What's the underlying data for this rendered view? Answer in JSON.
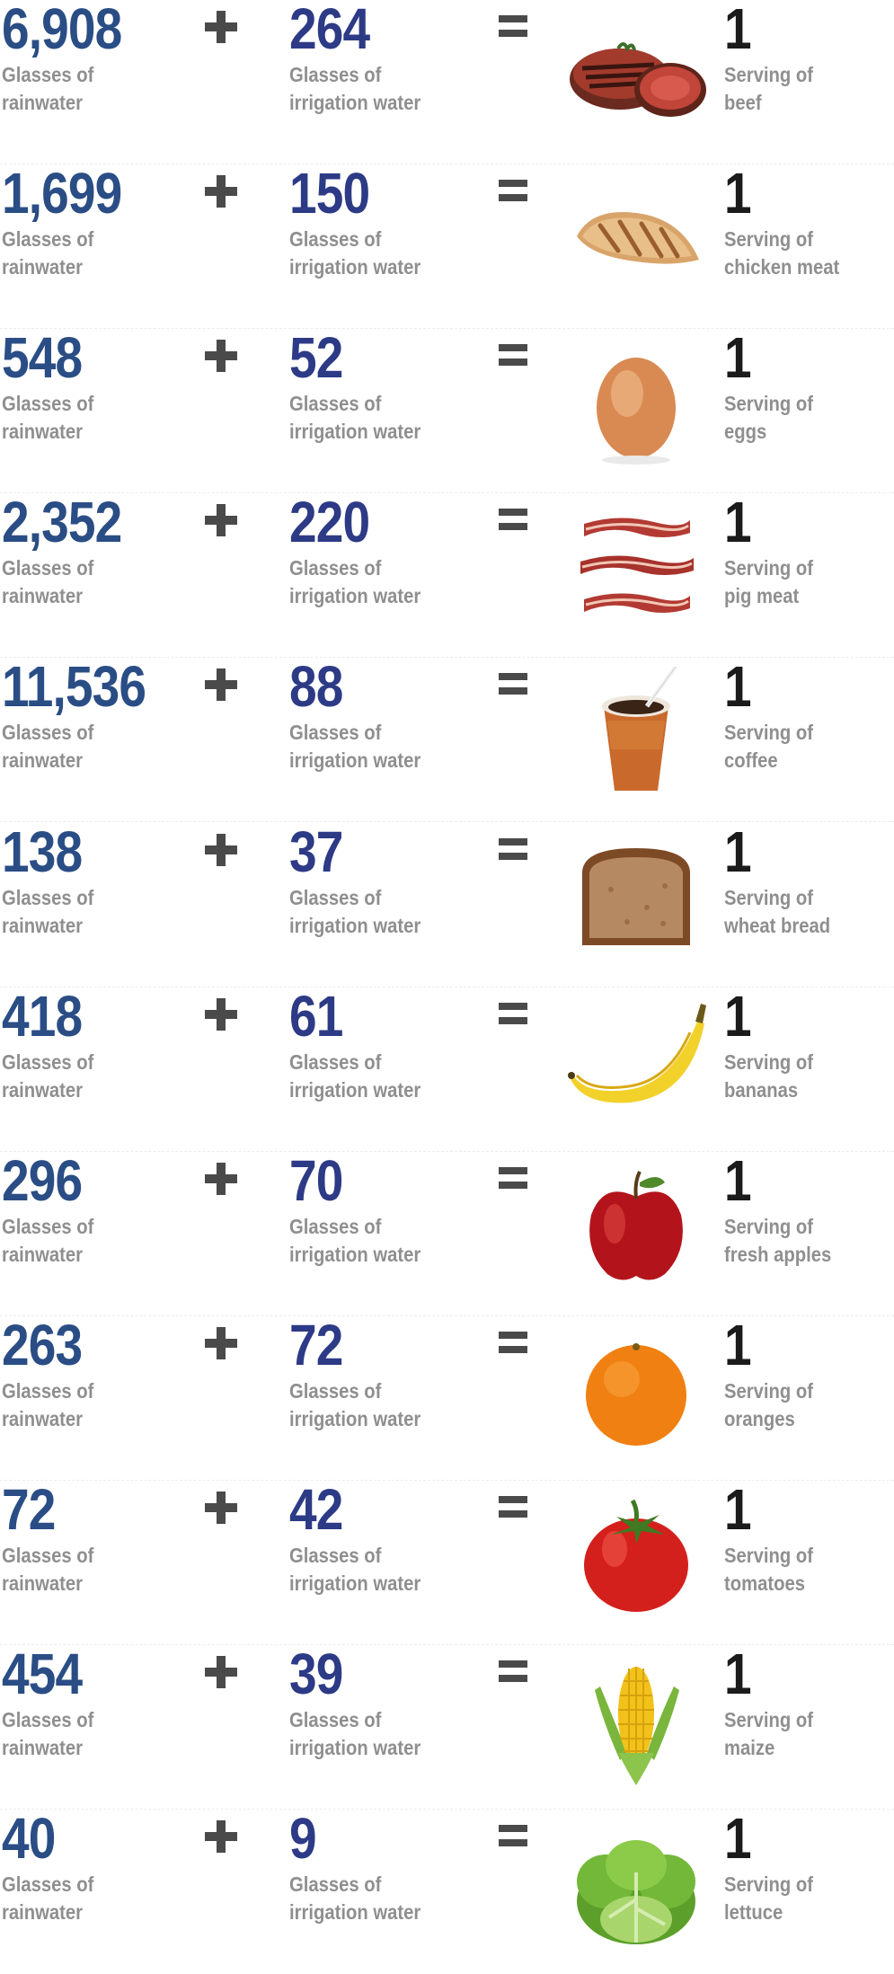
{
  "rows": [
    {
      "rain_value": "6,908",
      "rain_label_1": "Glasses of",
      "rain_label_2": "rainwater",
      "irrigation_value": "264",
      "irrigation_label_1": "Glasses of",
      "irrigation_label_2": "irrigation water",
      "serving_value": "1",
      "serving_label_1": "Serving of",
      "serving_label_2": "beef",
      "icon": "steak-icon"
    },
    {
      "rain_value": "1,699",
      "rain_label_1": "Glasses of",
      "rain_label_2": "rainwater",
      "irrigation_value": "150",
      "irrigation_label_1": "Glasses of",
      "irrigation_label_2": "irrigation water",
      "serving_value": "1",
      "serving_label_1": "Serving of",
      "serving_label_2": "chicken meat",
      "icon": "chicken-icon"
    },
    {
      "rain_value": "548",
      "rain_label_1": "Glasses of",
      "rain_label_2": "rainwater",
      "irrigation_value": "52",
      "irrigation_label_1": "Glasses of",
      "irrigation_label_2": "irrigation water",
      "serving_value": "1",
      "serving_label_1": "Serving of",
      "serving_label_2": "eggs",
      "icon": "egg-icon"
    },
    {
      "rain_value": "2,352",
      "rain_label_1": "Glasses of",
      "rain_label_2": "rainwater",
      "irrigation_value": "220",
      "irrigation_label_1": "Glasses of",
      "irrigation_label_2": "irrigation water",
      "serving_value": "1",
      "serving_label_1": "Serving of",
      "serving_label_2": "pig meat",
      "icon": "bacon-icon"
    },
    {
      "rain_value": "11,536",
      "rain_label_1": "Glasses of",
      "rain_label_2": "rainwater",
      "irrigation_value": "88",
      "irrigation_label_1": "Glasses of",
      "irrigation_label_2": "irrigation water",
      "serving_value": "1",
      "serving_label_1": "Serving of",
      "serving_label_2": "coffee",
      "icon": "coffee-cup-icon"
    },
    {
      "rain_value": "138",
      "rain_label_1": "Glasses of",
      "rain_label_2": "rainwater",
      "irrigation_value": "37",
      "irrigation_label_1": "Glasses of",
      "irrigation_label_2": "irrigation water",
      "serving_value": "1",
      "serving_label_1": "Serving of",
      "serving_label_2": "wheat bread",
      "icon": "bread-icon"
    },
    {
      "rain_value": "418",
      "rain_label_1": "Glasses of",
      "rain_label_2": "rainwater",
      "irrigation_value": "61",
      "irrigation_label_1": "Glasses of",
      "irrigation_label_2": "irrigation water",
      "serving_value": "1",
      "serving_label_1": "Serving of",
      "serving_label_2": "bananas",
      "icon": "banana-icon"
    },
    {
      "rain_value": "296",
      "rain_label_1": "Glasses of",
      "rain_label_2": "rainwater",
      "irrigation_value": "70",
      "irrigation_label_1": "Glasses of",
      "irrigation_label_2": "irrigation water",
      "serving_value": "1",
      "serving_label_1": "Serving of",
      "serving_label_2": "fresh apples",
      "icon": "apple-icon"
    },
    {
      "rain_value": "263",
      "rain_label_1": "Glasses of",
      "rain_label_2": "rainwater",
      "irrigation_value": "72",
      "irrigation_label_1": "Glasses of",
      "irrigation_label_2": "irrigation water",
      "serving_value": "1",
      "serving_label_1": "Serving of",
      "serving_label_2": "oranges",
      "icon": "orange-icon"
    },
    {
      "rain_value": "72",
      "rain_label_1": "Glasses of",
      "rain_label_2": "rainwater",
      "irrigation_value": "42",
      "irrigation_label_1": "Glasses of",
      "irrigation_label_2": "irrigation water",
      "serving_value": "1",
      "serving_label_1": "Serving of",
      "serving_label_2": "tomatoes",
      "icon": "tomato-icon"
    },
    {
      "rain_value": "454",
      "rain_label_1": "Glasses of",
      "rain_label_2": "rainwater",
      "irrigation_value": "39",
      "irrigation_label_1": "Glasses of",
      "irrigation_label_2": "irrigation water",
      "serving_value": "1",
      "serving_label_1": "Serving of",
      "serving_label_2": "maize",
      "icon": "corn-icon"
    },
    {
      "rain_value": "40",
      "rain_label_1": "Glasses of",
      "rain_label_2": "rainwater",
      "irrigation_value": "9",
      "irrigation_label_1": "Glasses of",
      "irrigation_label_2": "irrigation water",
      "serving_value": "1",
      "serving_label_1": "Serving of",
      "serving_label_2": "lettuce",
      "icon": "lettuce-icon"
    }
  ],
  "colors": {
    "rain_number": "#2a4d85",
    "irrigation_number": "#2d3a86",
    "serving_number": "#1b1b1b",
    "label": "#8f8f8f",
    "operator": "#4a4a4a"
  }
}
